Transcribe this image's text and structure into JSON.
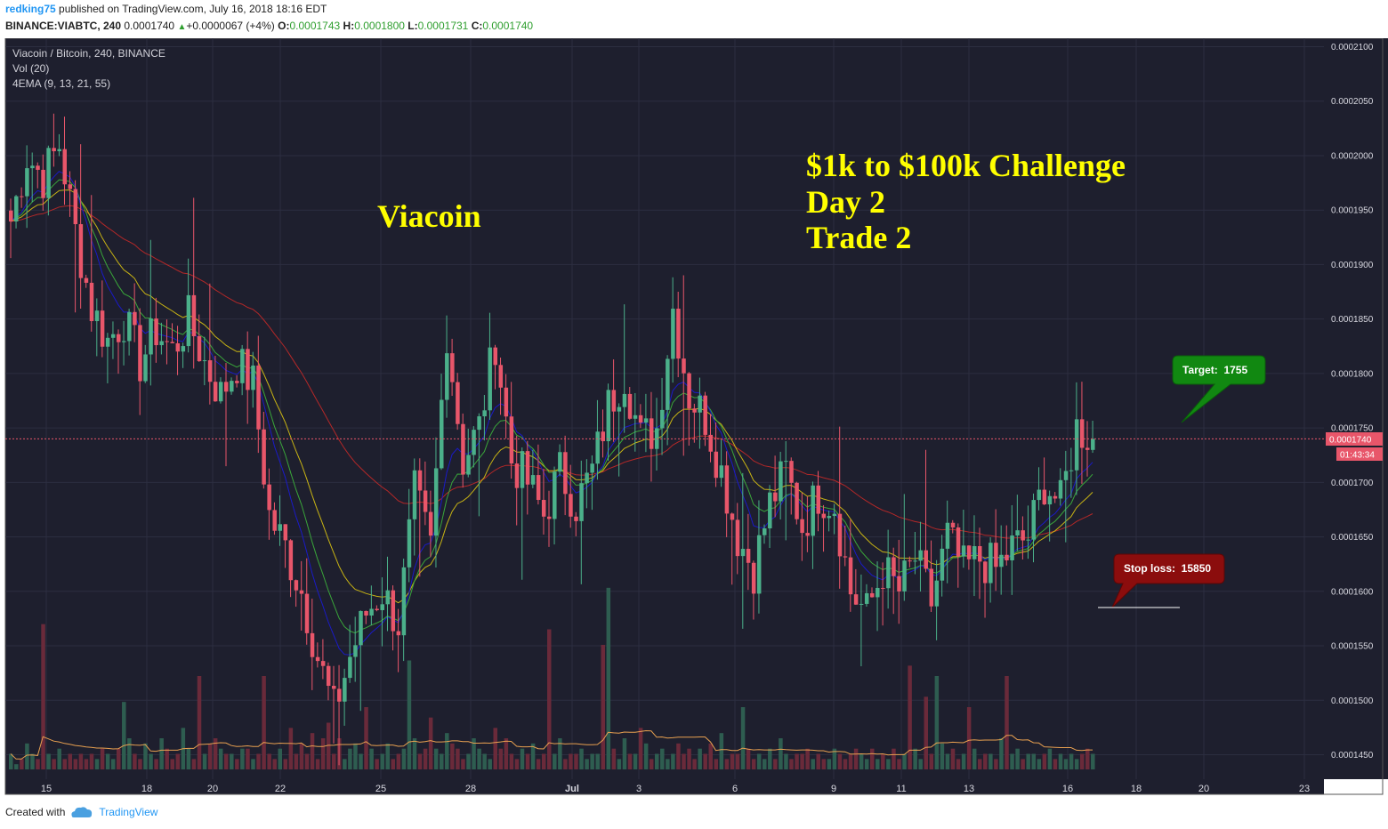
{
  "header": {
    "user": "redking75",
    "published_text": "published on TradingView.com, July 16, 2018 18:16 EDT",
    "symbol": "BINANCE:VIABTC, 240",
    "last": "0.0001740",
    "change": "+0.0000067 (+4%)",
    "o_label": "O:",
    "o_value": "0.0001743",
    "h_label": "H:",
    "h_value": "0.0001800",
    "l_label": "L:",
    "l_value": "0.0001731",
    "c_label": "C:",
    "c_value": "0.0001740"
  },
  "legend": {
    "title": "Viacoin / Bitcoin, 240, BINANCE",
    "vol": "Vol (20)",
    "ema": "4EMA (9, 13, 21, 55)"
  },
  "annotations": {
    "viacoin": "Viacoin",
    "challenge_line1": "$1k to $100k Challenge",
    "challenge_line2": "Day 2",
    "challenge_line3": "Trade 2",
    "target": "Target:  1755",
    "stop_loss": "Stop loss:  15850"
  },
  "price_label": {
    "price": "0.0001740",
    "countdown": "01:43:34"
  },
  "footer": {
    "created_with": "Created with",
    "brand": "TradingView"
  },
  "colors": {
    "background": "#1e1f2e",
    "up": "#4bb08a",
    "down": "#e8566a",
    "ema9": "#1a1ac8",
    "ema13": "#3aa63a",
    "ema21": "#c8b414",
    "ema55": "#b42828",
    "volume_ma": "#e8a050",
    "target_box": "#118811",
    "stop_box": "#8b0d0d",
    "price_line": "#e8566a"
  },
  "chart_data": {
    "type": "candlestick",
    "timeframe": "240",
    "x_tick_labels": [
      "15",
      "18",
      "20",
      "22",
      "25",
      "28",
      "Jul",
      "3",
      "6",
      "9",
      "11",
      "13",
      "16",
      "18",
      "20",
      "23"
    ],
    "y_tick_labels": [
      "0.0002100",
      "0.0002050",
      "0.0002000",
      "0.0001950",
      "0.0001900",
      "0.0001850",
      "0.0001800",
      "0.0001750",
      "0.0001700",
      "0.0001650",
      "0.0001600",
      "0.0001550",
      "0.0001500",
      "0.0001450"
    ],
    "ylim": [
      0.000142,
      0.000211
    ],
    "current_price": 0.000174,
    "target": 0.0001755,
    "stop_loss": 0.0001585,
    "close_path": [
      [
        0,
        0.000194
      ],
      [
        1,
        0.0002
      ],
      [
        2,
        0.000198
      ],
      [
        3,
        0.000201
      ],
      [
        4,
        0.000193
      ],
      [
        5,
        0.000186
      ],
      [
        6,
        0.000183
      ],
      [
        7,
        0.000185
      ],
      [
        8,
        0.000181
      ],
      [
        9,
        0.000184
      ],
      [
        10,
        0.000182
      ],
      [
        11,
        0.000185
      ],
      [
        12,
        0.000181
      ],
      [
        13,
        0.000178
      ],
      [
        14,
        0.000181
      ],
      [
        15,
        0.000179
      ],
      [
        16,
        0.000167
      ],
      [
        17,
        0.000164
      ],
      [
        18,
        0.00016
      ],
      [
        19,
        0.000154
      ],
      [
        20,
        0.000149
      ],
      [
        21,
        0.000154
      ],
      [
        22,
        0.000158
      ],
      [
        23,
        0.00016
      ],
      [
        24,
        0.000157
      ],
      [
        25,
        0.000169
      ],
      [
        26,
        0.000164
      ],
      [
        27,
        0.000184
      ],
      [
        28,
        0.000172
      ],
      [
        29,
        0.000175
      ],
      [
        30,
        0.000183
      ],
      [
        31,
        0.000172
      ],
      [
        32,
        0.00017
      ],
      [
        33,
        0.000167
      ],
      [
        34,
        0.000171
      ],
      [
        35,
        0.000168
      ],
      [
        36,
        0.000171
      ],
      [
        37,
        0.000177
      ],
      [
        38,
        0.00018
      ],
      [
        39,
        0.000174
      ],
      [
        40,
        0.000175
      ],
      [
        41,
        0.000186
      ],
      [
        42,
        0.000178
      ],
      [
        43,
        0.000176
      ],
      [
        44,
        0.000171
      ],
      [
        45,
        0.000165
      ],
      [
        46,
        0.000162
      ],
      [
        47,
        0.000168
      ],
      [
        48,
        0.000171
      ],
      [
        49,
        0.000166
      ],
      [
        50,
        0.000169
      ],
      [
        51,
        0.000168
      ],
      [
        52,
        0.00016
      ],
      [
        53,
        0.000158
      ],
      [
        54,
        0.000162
      ],
      [
        55,
        0.00016
      ],
      [
        56,
        0.000163
      ],
      [
        57,
        0.000159
      ],
      [
        58,
        0.000165
      ],
      [
        59,
        0.000162
      ],
      [
        60,
        0.000163
      ],
      [
        61,
        0.000162
      ],
      [
        62,
        0.000164
      ],
      [
        63,
        0.000165
      ],
      [
        64,
        0.00017
      ],
      [
        65,
        0.000168
      ],
      [
        66,
        0.000175
      ],
      [
        67,
        0.000174
      ]
    ],
    "volume_values": [
      3,
      1,
      2,
      5,
      3,
      2,
      28,
      3,
      2,
      4,
      2,
      3,
      2,
      3,
      2,
      3,
      2,
      4,
      3,
      2,
      4,
      13,
      6,
      3,
      2,
      5,
      3,
      2,
      6,
      4,
      2,
      3,
      8,
      4,
      2,
      18,
      3,
      5,
      6,
      4,
      3,
      3,
      2,
      4,
      4,
      2,
      3,
      18,
      3,
      2,
      4,
      2,
      8,
      3,
      5,
      3,
      7,
      2,
      6,
      9,
      3,
      6,
      2,
      4,
      5,
      3,
      12,
      4,
      2,
      3,
      5,
      2,
      3,
      4,
      21,
      6,
      3,
      4,
      10,
      4,
      3,
      7,
      5,
      4,
      2,
      3,
      6,
      4,
      3,
      2,
      8,
      4,
      6,
      3,
      2,
      4,
      3,
      5,
      2,
      3,
      27,
      3,
      6,
      2,
      3,
      3,
      4,
      2,
      3,
      3,
      24,
      35,
      4,
      2,
      6,
      3,
      3,
      8,
      5,
      2,
      3,
      4,
      2,
      3,
      5,
      3,
      4,
      2,
      4,
      3,
      5,
      2,
      7,
      2,
      3,
      3,
      12,
      4,
      2,
      3,
      2,
      4,
      2,
      6,
      3,
      2,
      3,
      3,
      4,
      2,
      3,
      2,
      2,
      4,
      3,
      2,
      3,
      4,
      3,
      2,
      4,
      2,
      3,
      2,
      4,
      2,
      3,
      20,
      4,
      2,
      14,
      3,
      18,
      5,
      3,
      4,
      2,
      3,
      12,
      4,
      2,
      3,
      3,
      2,
      6,
      18,
      3,
      4,
      2,
      3,
      3,
      2,
      3,
      4,
      2,
      3,
      2,
      3,
      2,
      3,
      4,
      3,
      3,
      4,
      3,
      3
    ]
  }
}
